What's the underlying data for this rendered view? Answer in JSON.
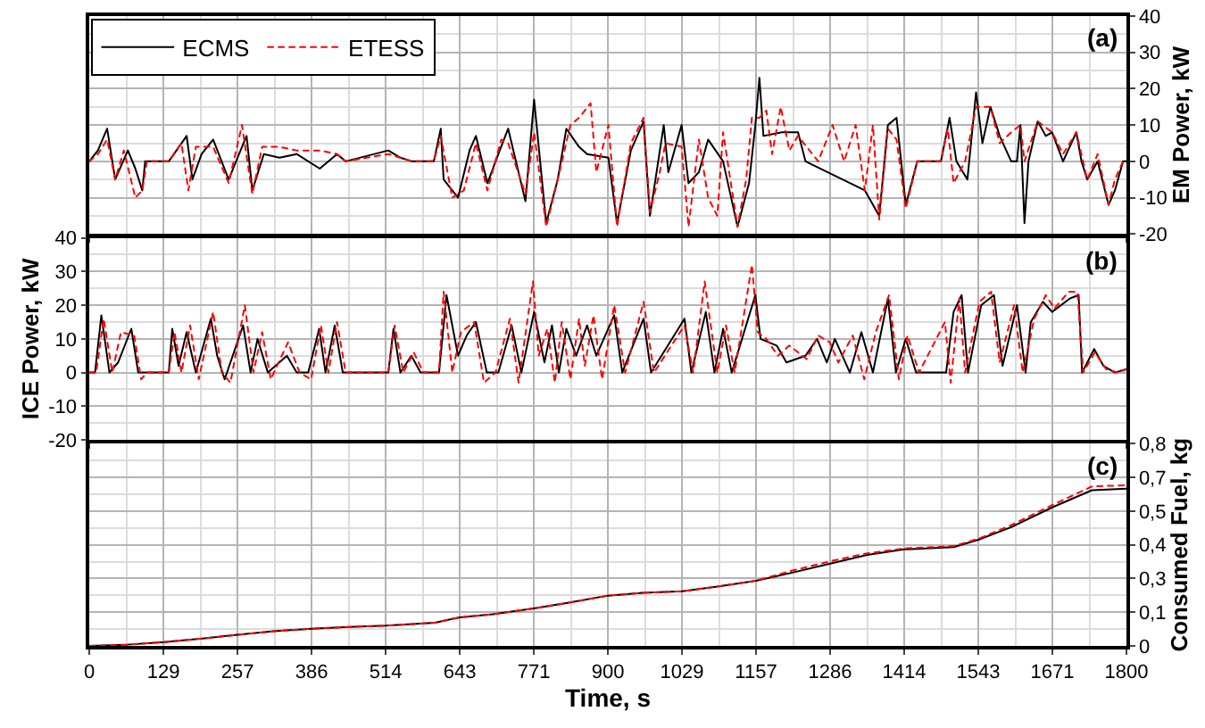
{
  "chart_data": [
    {
      "type": "line",
      "ylabel": "EM Power, kW",
      "annotations": [
        "(a)"
      ],
      "grid": true,
      "legend": "top left",
      "tick_labels": "y",
      "xlim": [
        0,
        1800
      ],
      "xticks": [
        {
          "value": 0,
          "label": null
        },
        {
          "value": 128.57,
          "label": null
        },
        {
          "value": 257.14,
          "label": null
        },
        {
          "value": 385.71,
          "label": null
        },
        {
          "value": 514.29,
          "label": null
        },
        {
          "value": 642.86,
          "label": null
        },
        {
          "value": 771.43,
          "label": null
        },
        {
          "value": 900,
          "label": null
        },
        {
          "value": 1028.57,
          "label": null
        },
        {
          "value": 1157.14,
          "label": null
        },
        {
          "value": 1285.71,
          "label": null
        },
        {
          "value": 1414.29,
          "label": null
        },
        {
          "value": 1542.86,
          "label": null
        },
        {
          "value": 1671.43,
          "label": null
        },
        {
          "value": 1800,
          "label": null
        }
      ],
      "ylim": [
        -20,
        40
      ],
      "yticks": [
        -20,
        -10,
        0,
        10,
        20,
        30,
        40
      ],
      "series": [
        {
          "name": "ECMS",
          "color": "#000000",
          "line_style": "solid",
          "x": [
            0,
            15,
            31,
            45,
            67,
            80,
            92,
            97,
            138,
            169,
            179,
            195,
            215,
            242,
            260,
            273,
            283,
            303,
            330,
            360,
            400,
            430,
            445,
            519,
            540,
            560,
            598,
            610,
            615,
            640,
            660,
            671,
            691,
            710,
            727,
            745,
            757,
            772,
            793,
            813,
            828,
            850,
            864,
            901,
            916,
            940,
            962,
            973,
            997,
            1005,
            1028,
            1040,
            1058,
            1074,
            1100,
            1125,
            1145,
            1156,
            1163,
            1170,
            1202,
            1230,
            1243,
            1346,
            1371,
            1386,
            1401,
            1417,
            1437,
            1478,
            1493,
            1505,
            1524,
            1539,
            1550,
            1564,
            1580,
            1600,
            1610,
            1616,
            1623,
            1630,
            1646,
            1660,
            1671,
            1690,
            1713,
            1722,
            1732,
            1750,
            1769,
            1780,
            1794,
            1800
          ],
          "values": [
            0,
            3,
            9,
            -5,
            3,
            -2,
            -8,
            0,
            0,
            7,
            -5,
            2,
            6,
            -5,
            2,
            7,
            -8,
            2,
            1,
            2,
            -2,
            2,
            0,
            3,
            1,
            0,
            0,
            9,
            -5,
            -10,
            3,
            7,
            -6,
            2,
            9,
            -3,
            -11,
            17,
            -17,
            -5,
            9,
            4,
            2,
            1,
            -17,
            3,
            11,
            -15,
            10,
            -3,
            10,
            -6,
            -3,
            6,
            0,
            -18,
            -6,
            10,
            23,
            7,
            8,
            8,
            0,
            -8,
            -15,
            10,
            12,
            -12,
            0,
            0,
            12,
            0,
            -5,
            19,
            5,
            15,
            7,
            0,
            0,
            10,
            -17,
            0,
            11,
            7,
            8,
            0,
            8,
            0,
            -5,
            0,
            -12,
            -8,
            0,
            0
          ]
        },
        {
          "name": "ETESS",
          "color": "#ff0000",
          "line_style": "dotted",
          "x": [
            0,
            15,
            31,
            45,
            60,
            80,
            92,
            100,
            138,
            160,
            172,
            185,
            215,
            242,
            265,
            283,
            300,
            330,
            360,
            400,
            430,
            445,
            519,
            540,
            560,
            598,
            610,
            630,
            650,
            671,
            691,
            715,
            727,
            757,
            772,
            793,
            813,
            835,
            850,
            870,
            880,
            901,
            916,
            940,
            962,
            973,
            990,
            1000,
            1028,
            1040,
            1058,
            1074,
            1090,
            1100,
            1125,
            1140,
            1150,
            1163,
            1175,
            1185,
            1200,
            1215,
            1230,
            1250,
            1265,
            1290,
            1310,
            1330,
            1346,
            1360,
            1371,
            1386,
            1401,
            1417,
            1437,
            1478,
            1490,
            1500,
            1520,
            1539,
            1564,
            1580,
            1600,
            1616,
            1623,
            1646,
            1671,
            1690,
            1713,
            1732,
            1750,
            1769,
            1780,
            1794,
            1800
          ],
          "values": [
            0,
            2,
            6,
            -5,
            3,
            -10,
            -8,
            0,
            0,
            5,
            -8,
            4,
            4,
            -6,
            10,
            -9,
            4,
            4,
            3,
            3,
            2,
            0,
            2,
            1,
            0,
            0,
            7,
            -10,
            -8,
            5,
            -8,
            6,
            5,
            -9,
            8,
            -18,
            -5,
            10,
            12,
            16,
            -3,
            10,
            -18,
            5,
            12,
            -14,
            -3,
            5,
            4,
            -18,
            6,
            -10,
            -15,
            8,
            -18,
            -5,
            12,
            12,
            14,
            2,
            15,
            3,
            7,
            3,
            0,
            10,
            0,
            10,
            -8,
            10,
            -16,
            9,
            6,
            -13,
            0,
            0,
            9,
            -6,
            0,
            15,
            15,
            5,
            8,
            10,
            0,
            11,
            8,
            2,
            8,
            -5,
            2,
            -12,
            -5,
            0,
            0
          ]
        }
      ]
    },
    {
      "type": "line",
      "ylabel": "ICE Power, kW",
      "annotations": [
        "(b)"
      ],
      "grid": true,
      "tick_labels": "y",
      "xlim": [
        0,
        1800
      ],
      "xticks": [
        {
          "value": 0,
          "label": null
        },
        {
          "value": 128.57,
          "label": null
        },
        {
          "value": 257.14,
          "label": null
        },
        {
          "value": 385.71,
          "label": null
        },
        {
          "value": 514.29,
          "label": null
        },
        {
          "value": 642.86,
          "label": null
        },
        {
          "value": 771.43,
          "label": null
        },
        {
          "value": 900,
          "label": null
        },
        {
          "value": 1028.57,
          "label": null
        },
        {
          "value": 1157.14,
          "label": null
        },
        {
          "value": 1285.71,
          "label": null
        },
        {
          "value": 1414.29,
          "label": null
        },
        {
          "value": 1542.86,
          "label": null
        },
        {
          "value": 1671.43,
          "label": null
        },
        {
          "value": 1800,
          "label": null
        }
      ],
      "ylim": [
        -20,
        40
      ],
      "yticks": [
        -20,
        -10,
        0,
        10,
        20,
        30,
        40
      ],
      "series": [
        {
          "color": "#000000",
          "line_style": "solid",
          "x": [
            0,
            10,
            21,
            35,
            50,
            73,
            85,
            95,
            138,
            144,
            155,
            169,
            185,
            211,
            222,
            235,
            267,
            280,
            292,
            310,
            343,
            360,
            380,
            399,
            410,
            426,
            440,
            519,
            528,
            540,
            559,
            575,
            607,
            620,
            640,
            655,
            671,
            690,
            710,
            733,
            750,
            772,
            790,
            803,
            815,
            828,
            845,
            864,
            880,
            911,
            925,
            962,
            975,
            1033,
            1045,
            1070,
            1085,
            1100,
            1115,
            1156,
            1165,
            1193,
            1210,
            1243,
            1263,
            1280,
            1294,
            1320,
            1340,
            1360,
            1386,
            1400,
            1417,
            1435,
            1487,
            1500,
            1514,
            1525,
            1548,
            1570,
            1585,
            1610,
            1625,
            1634,
            1655,
            1671,
            1702,
            1717,
            1723,
            1744,
            1760,
            1780,
            1800
          ],
          "values": [
            0,
            0,
            17,
            0,
            3,
            13,
            0,
            0,
            0,
            13,
            2,
            12,
            0,
            16,
            5,
            -2,
            14,
            0,
            10,
            0,
            5,
            0,
            0,
            13,
            0,
            14,
            0,
            0,
            13,
            0,
            5,
            0,
            0,
            23,
            5,
            11,
            15,
            0,
            0,
            14,
            0,
            18,
            3,
            14,
            0,
            13,
            5,
            14,
            5,
            17,
            0,
            16,
            0,
            16,
            0,
            18,
            0,
            13,
            0,
            23,
            10,
            8,
            3,
            5,
            10,
            3,
            10,
            0,
            12,
            0,
            22,
            0,
            10,
            0,
            0,
            18,
            23,
            0,
            20,
            23,
            2,
            20,
            0,
            15,
            21,
            18,
            22,
            23,
            0,
            7,
            2,
            0,
            1
          ]
        },
        {
          "color": "#ff0000",
          "line_style": "dotted",
          "x": [
            0,
            12,
            25,
            40,
            55,
            78,
            90,
            100,
            138,
            148,
            160,
            175,
            190,
            215,
            230,
            245,
            270,
            285,
            300,
            315,
            345,
            365,
            385,
            402,
            415,
            430,
            445,
            519,
            530,
            545,
            563,
            580,
            607,
            615,
            630,
            645,
            668,
            685,
            705,
            730,
            745,
            770,
            780,
            795,
            808,
            820,
            835,
            850,
            860,
            875,
            890,
            911,
            930,
            962,
            980,
            1033,
            1048,
            1068,
            1090,
            1105,
            1120,
            1150,
            1160,
            1175,
            1195,
            1215,
            1245,
            1265,
            1285,
            1300,
            1325,
            1345,
            1365,
            1388,
            1405,
            1420,
            1440,
            1485,
            1495,
            1510,
            1520,
            1545,
            1565,
            1580,
            1605,
            1620,
            1640,
            1660,
            1675,
            1700,
            1715,
            1725,
            1745,
            1765,
            1785,
            1800
          ],
          "values": [
            0,
            0,
            16,
            0,
            12,
            11,
            -2,
            0,
            0,
            12,
            0,
            14,
            -2,
            18,
            0,
            -3,
            20,
            0,
            12,
            -2,
            9,
            0,
            -2,
            14,
            0,
            15,
            0,
            0,
            14,
            0,
            6,
            0,
            0,
            24,
            0,
            12,
            15,
            -3,
            0,
            16,
            -3,
            27,
            5,
            13,
            -3,
            15,
            -2,
            16,
            2,
            17,
            -2,
            20,
            0,
            21,
            0,
            14,
            0,
            27,
            0,
            14,
            0,
            32,
            12,
            10,
            5,
            8,
            4,
            11,
            9,
            3,
            11,
            -2,
            12,
            23,
            -2,
            11,
            0,
            15,
            -3,
            22,
            0,
            21,
            24,
            3,
            20,
            0,
            16,
            23,
            19,
            24,
            24,
            0,
            6,
            1,
            0,
            1
          ]
        }
      ]
    },
    {
      "type": "line",
      "xlabel": "Time, s",
      "ylabel": "Consumed Fuel, kg",
      "annotations": [
        "(c)"
      ],
      "grid": true,
      "xlim": [
        0,
        1800
      ],
      "xticks": [
        0,
        {
          "value": 128.57,
          "label": "129"
        },
        {
          "value": 257.14,
          "label": "257"
        },
        {
          "value": 385.71,
          "label": "386"
        },
        {
          "value": 514.29,
          "label": "514"
        },
        {
          "value": 642.86,
          "label": "643"
        },
        {
          "value": 771.43,
          "label": "771"
        },
        900,
        {
          "value": 1028.57,
          "label": "1029"
        },
        {
          "value": 1157.14,
          "label": "1157"
        },
        {
          "value": 1285.71,
          "label": "1286"
        },
        {
          "value": 1414.29,
          "label": "1414"
        },
        {
          "value": 1542.86,
          "label": "1543"
        },
        {
          "value": 1671.43,
          "label": "1671"
        },
        1800
      ],
      "ylim": [
        0,
        0.8
      ],
      "yticks": [
        0,
        {
          "value": 0.1333,
          "label": "0,1"
        },
        {
          "value": 0.2667,
          "label": "0,3"
        },
        {
          "value": 0.4,
          "label": "0,4"
        },
        {
          "value": 0.5333,
          "label": "0,5"
        },
        {
          "value": 0.6667,
          "label": "0,7"
        },
        {
          "value": 0.8,
          "label": "0,8"
        }
      ],
      "series": [
        {
          "color": "#000000",
          "line_style": "solid",
          "x": [
            0,
            60,
            129,
            200,
            257,
            320,
            386,
            450,
            514,
            600,
            643,
            700,
            771,
            830,
            900,
            960,
            1029,
            1090,
            1157,
            1220,
            1286,
            1350,
            1414,
            1500,
            1543,
            1600,
            1671,
            1740,
            1800
          ],
          "values": [
            0,
            0.004,
            0.015,
            0.03,
            0.044,
            0.058,
            0.068,
            0.075,
            0.08,
            0.092,
            0.113,
            0.125,
            0.148,
            0.17,
            0.199,
            0.21,
            0.216,
            0.235,
            0.258,
            0.29,
            0.326,
            0.36,
            0.382,
            0.391,
            0.42,
            0.47,
            0.548,
            0.616,
            0.622
          ]
        },
        {
          "color": "#ff0000",
          "line_style": "dotted",
          "x": [
            0,
            60,
            129,
            200,
            257,
            320,
            386,
            450,
            514,
            600,
            643,
            700,
            771,
            830,
            900,
            960,
            1029,
            1090,
            1157,
            1220,
            1286,
            1350,
            1414,
            1500,
            1543,
            1600,
            1671,
            1740,
            1800
          ],
          "values": [
            0,
            0.004,
            0.015,
            0.03,
            0.044,
            0.058,
            0.068,
            0.075,
            0.08,
            0.092,
            0.113,
            0.125,
            0.148,
            0.17,
            0.199,
            0.21,
            0.216,
            0.235,
            0.258,
            0.298,
            0.335,
            0.366,
            0.386,
            0.395,
            0.424,
            0.478,
            0.557,
            0.631,
            0.636
          ]
        }
      ]
    }
  ]
}
